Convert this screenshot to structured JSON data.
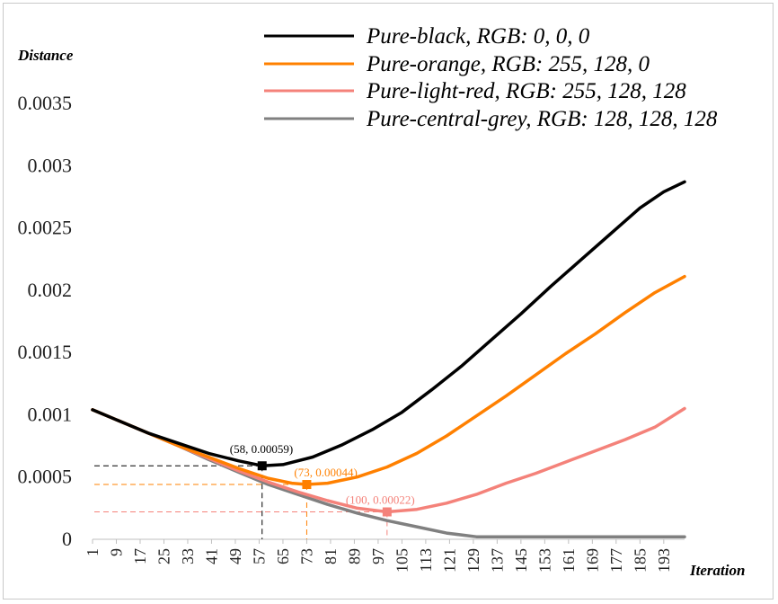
{
  "chart_data": {
    "type": "line",
    "title": "",
    "xlabel": "Iteration",
    "ylabel": "Distance",
    "xlim": [
      1,
      200
    ],
    "ylim": [
      0,
      0.0035
    ],
    "yticks": [
      "0",
      "0.0005",
      "0.001",
      "0.0015",
      "0.002",
      "0.0025",
      "0.003",
      "0.0035"
    ],
    "xticks": [
      "1",
      "9",
      "17",
      "25",
      "33",
      "41",
      "49",
      "57",
      "65",
      "73",
      "81",
      "89",
      "97",
      "105",
      "113",
      "121",
      "129",
      "137",
      "145",
      "153",
      "161",
      "169",
      "177",
      "185",
      "193"
    ],
    "grid": false,
    "legend_position": "top-right",
    "series": [
      {
        "name": "Pure-black, RGB: 0, 0, 0",
        "color": "#000000",
        "x": [
          1,
          10,
          20,
          30,
          40,
          50,
          58,
          65,
          75,
          85,
          95,
          105,
          115,
          125,
          135,
          145,
          155,
          165,
          175,
          185,
          193,
          200
        ],
        "y": [
          0.00104,
          0.00095,
          0.00085,
          0.00077,
          0.00069,
          0.00063,
          0.00059,
          0.0006,
          0.00066,
          0.00076,
          0.00088,
          0.00102,
          0.0012,
          0.00139,
          0.0016,
          0.00181,
          0.00203,
          0.00224,
          0.00245,
          0.00266,
          0.00279,
          0.00287
        ]
      },
      {
        "name": "Pure-orange, RGB: 255, 128, 0",
        "color": "#ff8000",
        "x": [
          1,
          10,
          20,
          30,
          40,
          50,
          60,
          68,
          73,
          80,
          90,
          100,
          110,
          120,
          130,
          140,
          150,
          160,
          170,
          180,
          190,
          200
        ],
        "y": [
          0.00104,
          0.00095,
          0.00085,
          0.00075,
          0.00066,
          0.00057,
          0.00049,
          0.00045,
          0.00044,
          0.00045,
          0.0005,
          0.00058,
          0.00069,
          0.00083,
          0.00099,
          0.00115,
          0.00132,
          0.00149,
          0.00165,
          0.00182,
          0.00198,
          0.00211
        ]
      },
      {
        "name": "Pure-light-red, RGB: 255, 128, 128",
        "color": "#f4827a",
        "x": [
          1,
          10,
          20,
          30,
          40,
          50,
          60,
          70,
          80,
          90,
          100,
          110,
          120,
          130,
          140,
          150,
          160,
          170,
          180,
          190,
          200
        ],
        "y": [
          0.00104,
          0.00095,
          0.00085,
          0.00075,
          0.00065,
          0.00055,
          0.00046,
          0.00038,
          0.00031,
          0.00025,
          0.00022,
          0.00024,
          0.00029,
          0.00036,
          0.00045,
          0.00053,
          0.00062,
          0.00071,
          0.0008,
          0.0009,
          0.00105
        ]
      },
      {
        "name": "Pure-central-grey, RGB: 128, 128, 128",
        "color": "#808080",
        "x": [
          1,
          10,
          20,
          30,
          40,
          50,
          60,
          70,
          80,
          90,
          100,
          110,
          120,
          130,
          140,
          150,
          160,
          170,
          180,
          190,
          200
        ],
        "y": [
          0.00104,
          0.00095,
          0.00085,
          0.00075,
          0.00064,
          0.00054,
          0.00044,
          0.00036,
          0.00028,
          0.00021,
          0.00015,
          0.0001,
          5e-05,
          2e-05,
          2e-05,
          2e-05,
          2e-05,
          2e-05,
          2e-05,
          2e-05,
          2e-05
        ]
      }
    ],
    "annotations": [
      {
        "text": "(58, 0.00059)",
        "x": 58,
        "y": 0.00059,
        "color": "#000000"
      },
      {
        "text": "(73, 0.00044)",
        "x": 73,
        "y": 0.00044,
        "color": "#ff8000"
      },
      {
        "text": "(100, 0.00022)",
        "x": 100,
        "y": 0.00022,
        "color": "#f4827a"
      }
    ]
  }
}
